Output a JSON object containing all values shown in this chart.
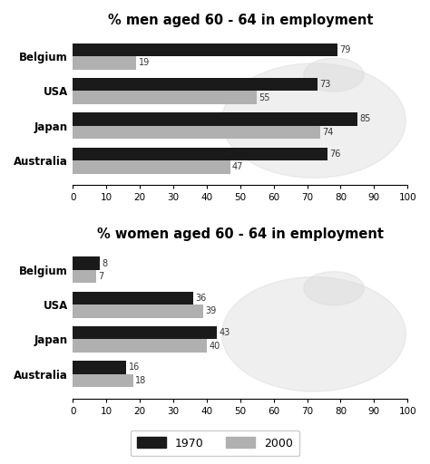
{
  "men_title": "% men aged 60 - 64 in employment",
  "women_title": "% women aged 60 - 64 in employment",
  "countries": [
    "Australia",
    "Japan",
    "USA",
    "Belgium"
  ],
  "men_1970": [
    76,
    85,
    73,
    79
  ],
  "men_2000": [
    47,
    74,
    55,
    19
  ],
  "women_1970": [
    16,
    43,
    36,
    8
  ],
  "women_2000": [
    18,
    40,
    39,
    7
  ],
  "color_1970": "#1a1a1a",
  "color_2000": "#b0b0b0",
  "xlim": [
    0,
    100
  ],
  "xticks": [
    0,
    10,
    20,
    30,
    40,
    50,
    60,
    70,
    80,
    90,
    100
  ],
  "xtick_labels": [
    "0",
    "10",
    "20",
    "30",
    "40",
    "50",
    "60",
    "70",
    "80",
    "90",
    "100"
  ],
  "bar_height": 0.38,
  "label_1970": "1970",
  "label_2000": "2000",
  "bg_color": "#ffffff",
  "title_fontsize": 10.5,
  "label_fontsize": 8.5,
  "tick_fontsize": 7.5,
  "value_fontsize": 7.0
}
